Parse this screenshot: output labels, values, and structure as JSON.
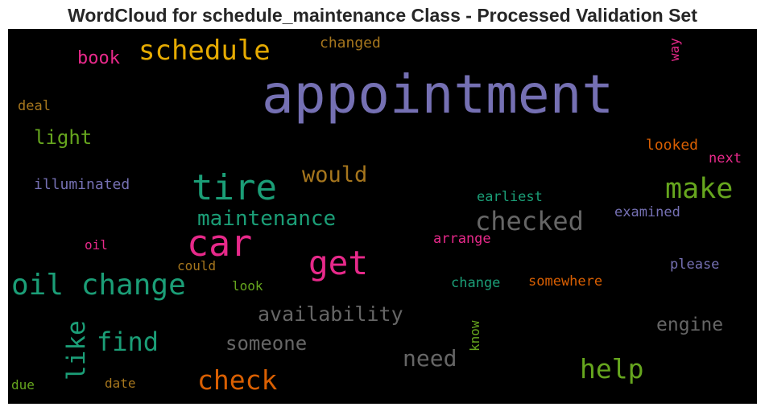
{
  "chart_data": {
    "type": "wordcloud",
    "title": "WordCloud for schedule_maintenance Class - Processed Validation Set",
    "background": "#000000",
    "words": [
      {
        "text": "appointment",
        "weight": 1.0,
        "color": "#7570b3",
        "rotate": 0
      },
      {
        "text": "schedule",
        "weight": 0.52,
        "color": "#e6ab02",
        "rotate": 0
      },
      {
        "text": "tire",
        "weight": 0.66,
        "color": "#1b9e77",
        "rotate": 0
      },
      {
        "text": "car",
        "weight": 0.68,
        "color": "#e7298a",
        "rotate": 0
      },
      {
        "text": "get",
        "weight": 0.62,
        "color": "#e7298a",
        "rotate": 0
      },
      {
        "text": "make",
        "weight": 0.53,
        "color": "#66a61e",
        "rotate": 0
      },
      {
        "text": "checked",
        "weight": 0.48,
        "color": "#666666",
        "rotate": 0
      },
      {
        "text": "oil change",
        "weight": 0.55,
        "color": "#1b9e77",
        "rotate": 0
      },
      {
        "text": "maintenance",
        "weight": 0.4,
        "color": "#1b9e77",
        "rotate": 0
      },
      {
        "text": "would",
        "weight": 0.41,
        "color": "#a6761d",
        "rotate": 0
      },
      {
        "text": "check",
        "weight": 0.5,
        "color": "#d95f02",
        "rotate": 0
      },
      {
        "text": "help",
        "weight": 0.5,
        "color": "#66a61e",
        "rotate": 0
      },
      {
        "text": "find",
        "weight": 0.49,
        "color": "#1b9e77",
        "rotate": 0
      },
      {
        "text": "like",
        "weight": 0.47,
        "color": "#1b9e77",
        "rotate": -90
      },
      {
        "text": "need",
        "weight": 0.42,
        "color": "#666666",
        "rotate": 0
      },
      {
        "text": "availability",
        "weight": 0.38,
        "color": "#666666",
        "rotate": 0
      },
      {
        "text": "someone",
        "weight": 0.36,
        "color": "#666666",
        "rotate": 0
      },
      {
        "text": "engine",
        "weight": 0.35,
        "color": "#666666",
        "rotate": 0
      },
      {
        "text": "light",
        "weight": 0.37,
        "color": "#66a61e",
        "rotate": 0
      },
      {
        "text": "book",
        "weight": 0.33,
        "color": "#e7298a",
        "rotate": 0
      },
      {
        "text": "illuminated",
        "weight": 0.27,
        "color": "#7570b3",
        "rotate": 0
      },
      {
        "text": "changed",
        "weight": 0.27,
        "color": "#a6761d",
        "rotate": 0
      },
      {
        "text": "deal",
        "weight": 0.25,
        "color": "#a6761d",
        "rotate": 0
      },
      {
        "text": "way",
        "weight": 0.24,
        "color": "#e7298a",
        "rotate": -90
      },
      {
        "text": "looked",
        "weight": 0.27,
        "color": "#d95f02",
        "rotate": 0
      },
      {
        "text": "next",
        "weight": 0.25,
        "color": "#e7298a",
        "rotate": 0
      },
      {
        "text": "earliest",
        "weight": 0.26,
        "color": "#1b9e77",
        "rotate": 0
      },
      {
        "text": "examined",
        "weight": 0.26,
        "color": "#7570b3",
        "rotate": 0
      },
      {
        "text": "arrange",
        "weight": 0.25,
        "color": "#e7298a",
        "rotate": 0
      },
      {
        "text": "oil",
        "weight": 0.24,
        "color": "#e7298a",
        "rotate": 0
      },
      {
        "text": "could",
        "weight": 0.24,
        "color": "#a6761d",
        "rotate": 0
      },
      {
        "text": "please",
        "weight": 0.25,
        "color": "#7570b3",
        "rotate": 0
      },
      {
        "text": "look",
        "weight": 0.24,
        "color": "#66a61e",
        "rotate": 0
      },
      {
        "text": "change",
        "weight": 0.25,
        "color": "#1b9e77",
        "rotate": 0
      },
      {
        "text": "somewhere",
        "weight": 0.25,
        "color": "#d95f02",
        "rotate": 0
      },
      {
        "text": "know",
        "weight": 0.24,
        "color": "#66a61e",
        "rotate": -90
      },
      {
        "text": "due",
        "weight": 0.24,
        "color": "#66a61e",
        "rotate": 0
      },
      {
        "text": "date",
        "weight": 0.24,
        "color": "#a6761d",
        "rotate": 0
      }
    ]
  }
}
